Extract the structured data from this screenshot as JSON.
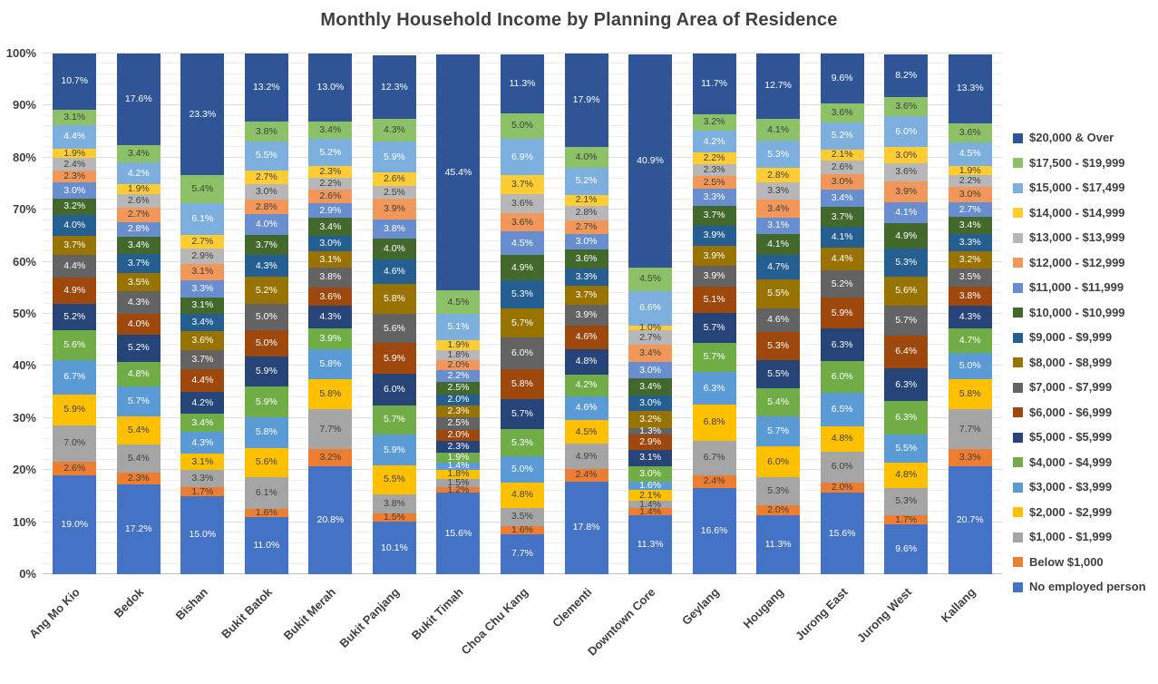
{
  "title": "Monthly Household Income by Planning Area of Residence",
  "colors": {
    "title_text": "#404040",
    "axis_text": "#404040",
    "gridline_minor": "#efefef",
    "gridline_major": "#dedede",
    "axis_line": "#bfbfbf",
    "label_dark": "#3f3f3f",
    "label_light": "#ffffff"
  },
  "chart_data": {
    "type": "bar",
    "stacked": true,
    "title": "Monthly Household Income by Planning Area of Residence",
    "xlabel": "",
    "ylabel": "",
    "ylim": [
      0,
      100
    ],
    "y_tick_step": 10,
    "y_minor_step": 2,
    "y_tick_suffix": "%",
    "grid": true,
    "legend_position": "right",
    "value_label_suffix": "%",
    "categories": [
      "Ang Mo Kio",
      "Bedok",
      "Bishan",
      "Bukit Batok",
      "Bukit Merah",
      "Bukit Panjang",
      "Bukit Timah",
      "Choa Chu Kang",
      "Clementi",
      "Downtown Core",
      "Geylang",
      "Hougang",
      "Jurong East",
      "Jurong West",
      "Kallang"
    ],
    "series": [
      {
        "name": "No employed person",
        "color": "#4472C4",
        "dark_label": false,
        "values": [
          19.0,
          17.2,
          15.0,
          11.0,
          20.8,
          10.1,
          15.6,
          7.7,
          17.8,
          11.3,
          16.6,
          11.3,
          15.6,
          9.6,
          20.7
        ]
      },
      {
        "name": "Below $1,000",
        "color": "#ED7D31",
        "dark_label": true,
        "values": [
          2.6,
          2.3,
          1.7,
          1.6,
          3.2,
          1.5,
          1.2,
          1.6,
          2.4,
          1.4,
          2.4,
          2.0,
          2.0,
          1.7,
          3.3
        ]
      },
      {
        "name": "$1,000 - $1,999",
        "color": "#A5A5A5",
        "dark_label": true,
        "values": [
          7.0,
          5.4,
          3.3,
          6.1,
          7.7,
          3.8,
          1.5,
          3.5,
          4.9,
          1.4,
          6.7,
          5.3,
          6.0,
          5.3,
          7.7
        ]
      },
      {
        "name": "$2,000 - $2,999",
        "color": "#FFC000",
        "dark_label": true,
        "values": [
          5.9,
          5.4,
          3.1,
          5.6,
          5.8,
          5.5,
          1.8,
          4.8,
          4.5,
          2.1,
          6.8,
          6.0,
          4.8,
          4.8,
          5.8
        ]
      },
      {
        "name": "$3,000 - $3,999",
        "color": "#5B9BD5",
        "dark_label": false,
        "values": [
          6.7,
          5.7,
          4.3,
          5.8,
          5.8,
          5.9,
          1.4,
          5.0,
          4.6,
          1.6,
          6.3,
          5.7,
          6.5,
          5.5,
          5.0
        ]
      },
      {
        "name": "$4,000 - $4,999",
        "color": "#70AD47",
        "dark_label": false,
        "values": [
          5.6,
          4.8,
          3.4,
          5.9,
          3.9,
          5.7,
          1.9,
          5.3,
          4.2,
          3.0,
          5.7,
          5.4,
          6.0,
          6.3,
          4.7
        ]
      },
      {
        "name": "$5,000 - $5,999",
        "color": "#264478",
        "dark_label": false,
        "values": [
          5.2,
          5.2,
          4.2,
          5.9,
          4.3,
          6.0,
          2.3,
          5.7,
          4.8,
          3.1,
          5.7,
          5.5,
          6.3,
          6.3,
          4.3
        ]
      },
      {
        "name": "$6,000 - $6,999",
        "color": "#9E480E",
        "dark_label": false,
        "values": [
          4.9,
          4.0,
          4.4,
          5.0,
          3.6,
          5.9,
          2.0,
          5.8,
          4.6,
          2.9,
          5.1,
          5.3,
          5.9,
          6.4,
          3.8
        ]
      },
      {
        "name": "$7,000 - $7,999",
        "color": "#636363",
        "dark_label": false,
        "values": [
          4.4,
          4.3,
          3.7,
          5.0,
          3.8,
          5.6,
          2.5,
          6.0,
          3.9,
          1.3,
          3.9,
          4.6,
          5.2,
          5.7,
          3.5
        ]
      },
      {
        "name": "$8,000 - $8,999",
        "color": "#997300",
        "dark_label": false,
        "values": [
          3.7,
          3.5,
          3.6,
          5.2,
          3.1,
          5.8,
          2.3,
          5.7,
          3.7,
          3.2,
          3.9,
          5.5,
          4.4,
          5.6,
          3.2
        ]
      },
      {
        "name": "$9,000 - $9,999",
        "color": "#255E91",
        "dark_label": false,
        "values": [
          4.0,
          3.7,
          3.4,
          4.3,
          3.0,
          4.6,
          2.0,
          5.3,
          3.3,
          3.0,
          3.9,
          4.7,
          4.1,
          5.3,
          3.3
        ]
      },
      {
        "name": "$10,000 - $10,999",
        "color": "#43682B",
        "dark_label": false,
        "values": [
          3.2,
          3.4,
          3.1,
          3.7,
          3.4,
          4.0,
          2.5,
          4.9,
          3.6,
          3.4,
          3.7,
          4.1,
          3.7,
          4.9,
          3.4
        ]
      },
      {
        "name": "$11,000 - $11,999",
        "color": "#698ED0",
        "dark_label": false,
        "values": [
          3.0,
          2.8,
          3.3,
          4.0,
          2.9,
          3.8,
          2.2,
          4.5,
          3.0,
          3.0,
          3.3,
          3.1,
          3.4,
          4.1,
          2.7
        ]
      },
      {
        "name": "$12,000 - $12,999",
        "color": "#F1975A",
        "dark_label": true,
        "values": [
          2.3,
          2.7,
          3.1,
          2.8,
          2.6,
          3.9,
          2.0,
          3.6,
          2.7,
          3.4,
          2.5,
          3.4,
          3.0,
          3.9,
          3.0
        ]
      },
      {
        "name": "$13,000 - $13,999",
        "color": "#B7B7B7",
        "dark_label": true,
        "values": [
          2.4,
          2.6,
          2.9,
          3.0,
          2.2,
          2.5,
          1.8,
          3.6,
          2.8,
          2.7,
          2.3,
          3.3,
          2.6,
          3.6,
          2.2
        ]
      },
      {
        "name": "$14,000 - $14,999",
        "color": "#FFCD33",
        "dark_label": true,
        "values": [
          1.9,
          1.9,
          2.7,
          2.7,
          2.3,
          2.6,
          1.9,
          3.7,
          2.1,
          1.0,
          2.2,
          2.8,
          2.1,
          3.0,
          1.9
        ]
      },
      {
        "name": "$15,000 - $17,499",
        "color": "#7CAFDD",
        "dark_label": false,
        "values": [
          4.4,
          4.2,
          6.1,
          5.5,
          5.2,
          5.9,
          5.1,
          6.9,
          5.2,
          6.6,
          4.2,
          5.3,
          5.2,
          6.0,
          4.5
        ]
      },
      {
        "name": "$17,500 - $19,999",
        "color": "#8CC168",
        "dark_label": true,
        "values": [
          3.1,
          3.4,
          5.4,
          3.8,
          3.4,
          4.3,
          4.5,
          5.0,
          4.0,
          4.5,
          3.2,
          4.1,
          3.6,
          3.6,
          3.6
        ]
      },
      {
        "name": "$20,000 & Over",
        "color": "#2F5597",
        "dark_label": false,
        "values": [
          10.7,
          17.6,
          23.3,
          13.2,
          13.0,
          12.3,
          45.4,
          11.3,
          17.9,
          40.9,
          11.7,
          12.7,
          9.6,
          8.2,
          13.3
        ]
      }
    ]
  }
}
